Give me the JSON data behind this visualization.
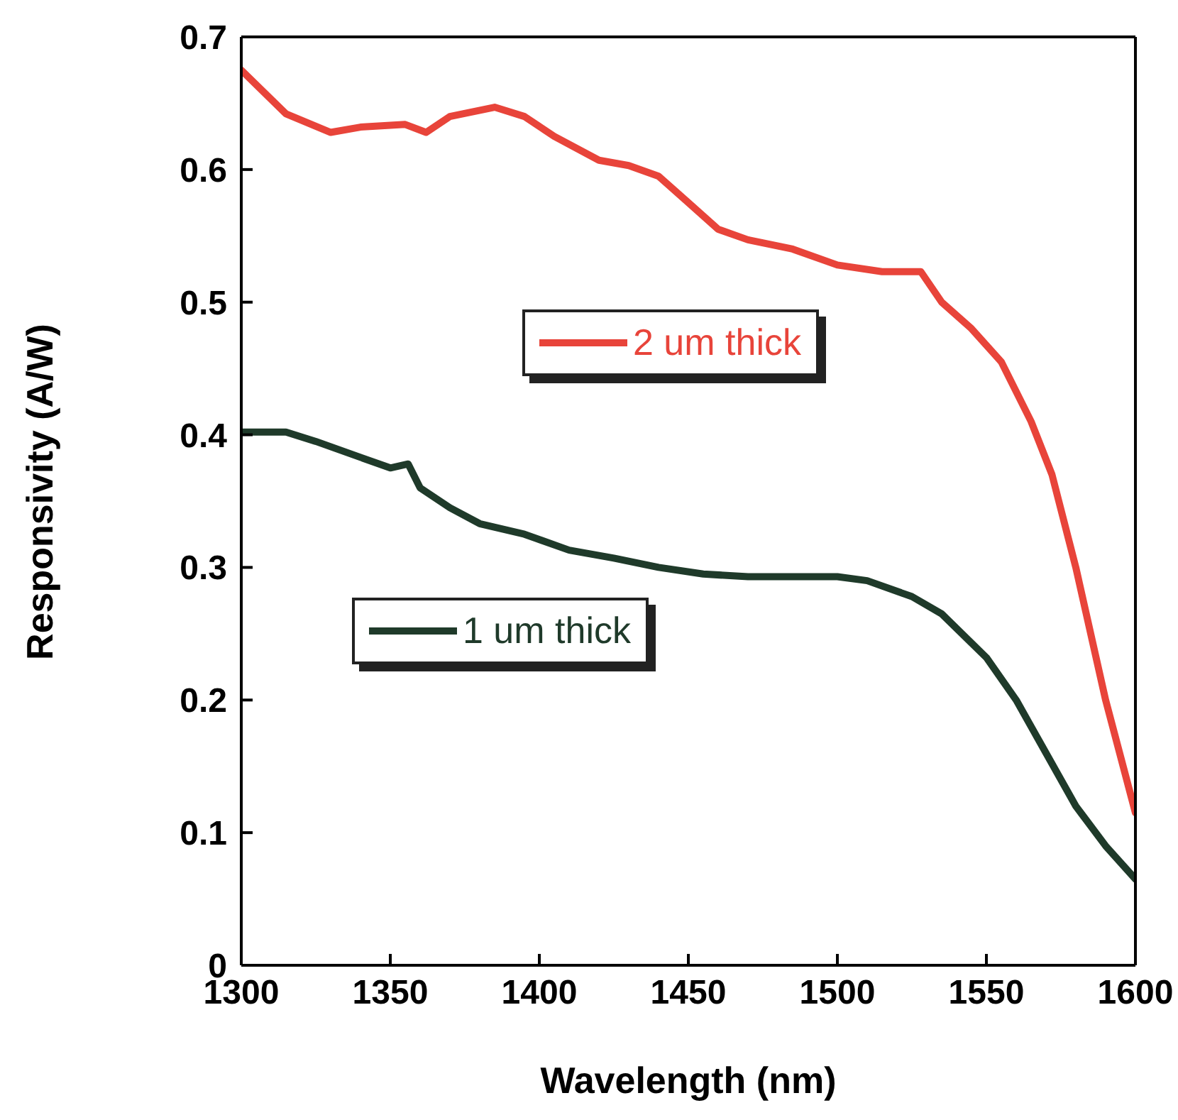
{
  "chart_data": {
    "type": "line",
    "xlabel": "Wavelength (nm)",
    "ylabel": "Responsivity (A/W)",
    "xlim": [
      1300,
      1600
    ],
    "xticks": [
      1300,
      1350,
      1400,
      1450,
      1500,
      1550,
      1600
    ],
    "ylim": [
      0,
      0.7
    ],
    "yticks": [
      0,
      0.1,
      0.2,
      0.3,
      0.4,
      0.5,
      0.6,
      0.7
    ],
    "legend": "center",
    "grid": false,
    "marker": "none",
    "line_style": "solid",
    "series": [
      {
        "name": "2 um thick",
        "color": "#e8443a",
        "x": [
          1300,
          1315,
          1330,
          1340,
          1355,
          1362,
          1370,
          1385,
          1395,
          1405,
          1420,
          1430,
          1440,
          1450,
          1460,
          1470,
          1485,
          1500,
          1515,
          1528,
          1535,
          1545,
          1555,
          1565,
          1572,
          1580,
          1590,
          1600
        ],
        "values": [
          0.675,
          0.642,
          0.628,
          0.632,
          0.634,
          0.628,
          0.64,
          0.647,
          0.64,
          0.625,
          0.607,
          0.603,
          0.595,
          0.575,
          0.555,
          0.547,
          0.54,
          0.528,
          0.523,
          0.523,
          0.5,
          0.48,
          0.455,
          0.41,
          0.37,
          0.3,
          0.2,
          0.115
        ]
      },
      {
        "name": "1 um thick",
        "color": "#1f3a2a",
        "x": [
          1300,
          1315,
          1325,
          1340,
          1350,
          1356,
          1360,
          1370,
          1380,
          1395,
          1410,
          1425,
          1440,
          1455,
          1470,
          1500,
          1510,
          1525,
          1535,
          1550,
          1560,
          1570,
          1580,
          1590,
          1600
        ],
        "values": [
          0.402,
          0.402,
          0.395,
          0.383,
          0.375,
          0.378,
          0.36,
          0.345,
          0.333,
          0.325,
          0.313,
          0.307,
          0.3,
          0.295,
          0.293,
          0.293,
          0.29,
          0.278,
          0.265,
          0.232,
          0.2,
          0.16,
          0.12,
          0.09,
          0.065
        ]
      }
    ]
  }
}
